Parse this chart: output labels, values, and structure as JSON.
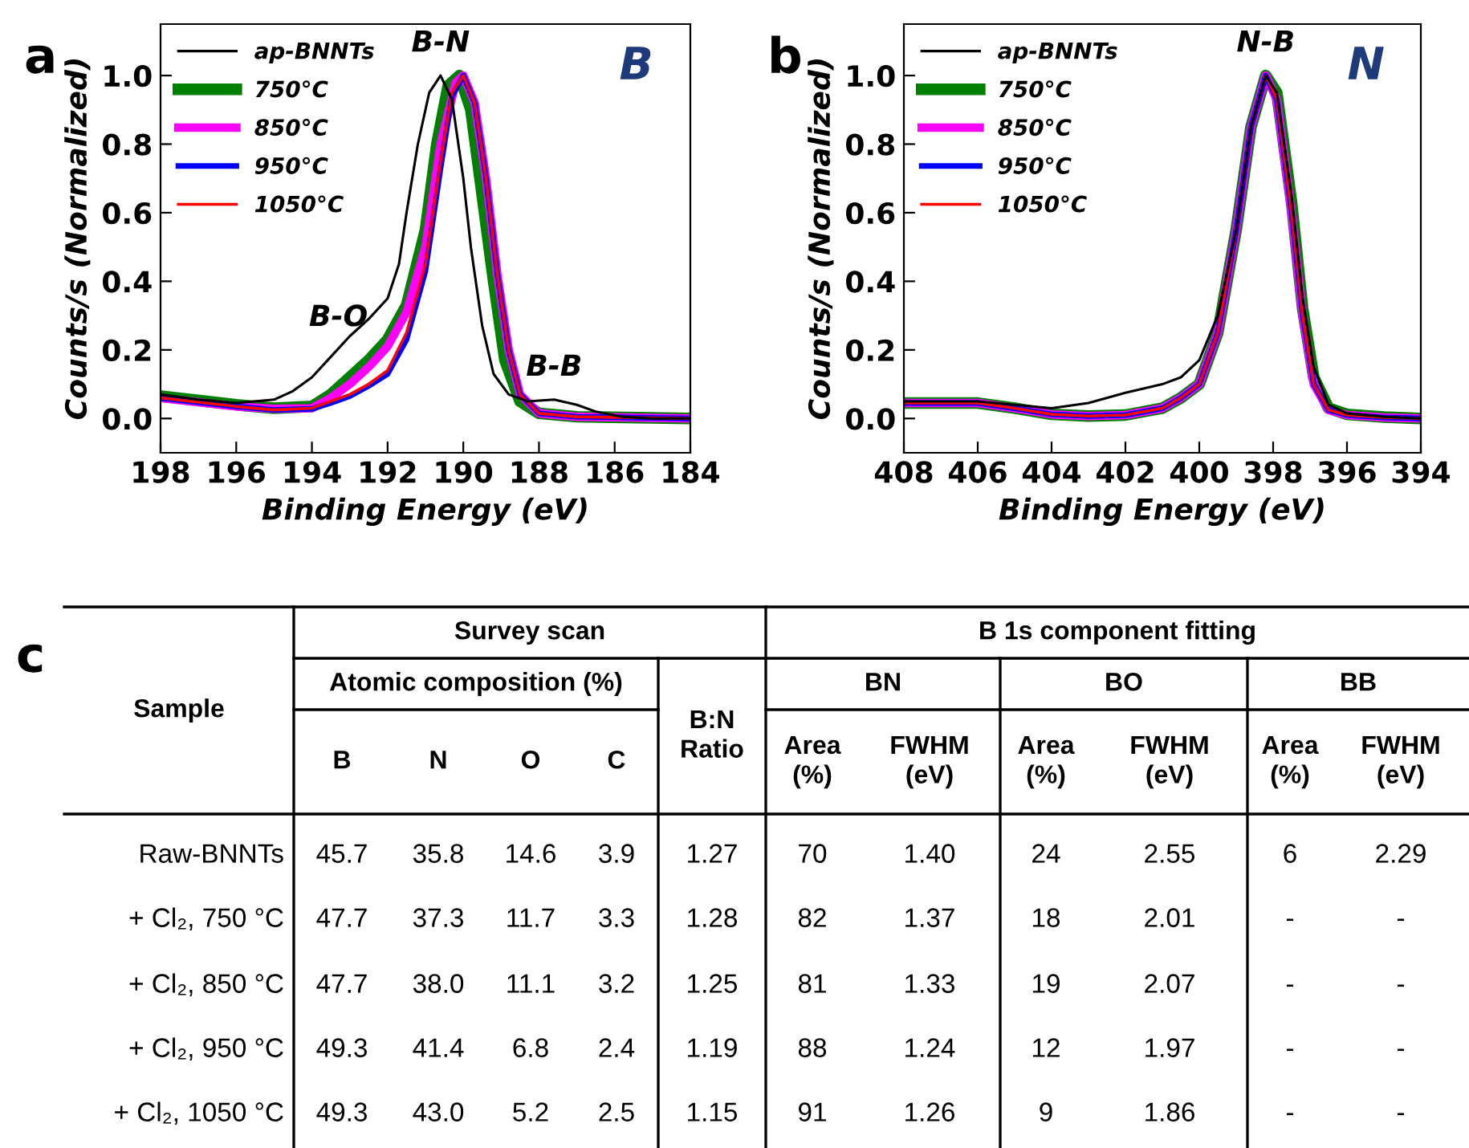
{
  "chart_data": [
    {
      "type": "line",
      "title": "a",
      "xlabel": "Binding Energy (eV)",
      "ylabel": "Counts/s (Normalized)",
      "xlim": [
        198,
        184
      ],
      "xticks": [
        198,
        196,
        194,
        192,
        190,
        188,
        186,
        184
      ],
      "ylim": [
        -0.1,
        1.15
      ],
      "yticks": [
        {
          "value": 0,
          "label": "0.0"
        },
        {
          "value": 0.2,
          "label": "0.2"
        },
        {
          "value": 0.4,
          "label": "0.4"
        },
        {
          "value": 0.6,
          "label": "0.6"
        },
        {
          "value": 0.8,
          "label": "0.8"
        },
        {
          "value": 1,
          "label": "1.0"
        }
      ],
      "legend": "top left",
      "grid": false,
      "annotations": [
        "B",
        {
          "text": "B-N",
          "x": 190.6,
          "y": 1.0
        },
        {
          "text": "B-O",
          "x": 193.3,
          "y": 0.2
        },
        {
          "text": "B-B",
          "x": 187.6,
          "y": 0.055
        }
      ],
      "series": [
        {
          "name": "ap-BNNTs",
          "color": "#000000",
          "x": [
            198,
            197,
            196,
            195,
            194.5,
            194,
            193.5,
            193,
            192.5,
            192,
            191.7,
            191.5,
            191.2,
            190.9,
            190.6,
            190.3,
            190,
            189.8,
            189.5,
            189.2,
            188.8,
            188.3,
            187.6,
            187,
            186.5,
            185.8,
            185,
            184
          ],
          "values": [
            0.07,
            0.055,
            0.045,
            0.055,
            0.08,
            0.12,
            0.18,
            0.24,
            0.29,
            0.35,
            0.45,
            0.6,
            0.8,
            0.95,
            1.0,
            0.93,
            0.7,
            0.5,
            0.27,
            0.13,
            0.07,
            0.05,
            0.055,
            0.04,
            0.02,
            0.005,
            0.0,
            0.0
          ]
        },
        {
          "name": "750°C",
          "color": "#008000",
          "x": [
            198,
            196,
            195,
            194,
            193.5,
            193,
            192.5,
            192,
            191.5,
            191,
            190.7,
            190.4,
            190.1,
            189.8,
            189.5,
            189.2,
            188.9,
            188.5,
            188,
            187,
            184
          ],
          "values": [
            0.065,
            0.04,
            0.03,
            0.035,
            0.07,
            0.12,
            0.17,
            0.23,
            0.33,
            0.55,
            0.8,
            0.97,
            1.0,
            0.9,
            0.65,
            0.4,
            0.17,
            0.05,
            0.015,
            0.005,
            0.0
          ]
        },
        {
          "name": "850°C",
          "color": "#ff00ff",
          "x": [
            198,
            196,
            195,
            194,
            193.5,
            193,
            192.5,
            192,
            191.5,
            191,
            190.6,
            190.2,
            190,
            189.7,
            189.4,
            189.1,
            188.8,
            188.5,
            188,
            187,
            184
          ],
          "values": [
            0.06,
            0.035,
            0.028,
            0.03,
            0.06,
            0.1,
            0.15,
            0.21,
            0.31,
            0.5,
            0.8,
            0.98,
            1.0,
            0.92,
            0.7,
            0.42,
            0.2,
            0.07,
            0.015,
            0.005,
            0.0
          ]
        },
        {
          "name": "950°C",
          "color": "#0000ff",
          "x": [
            198,
            196,
            195,
            194,
            193.5,
            193,
            192.5,
            192,
            191.5,
            191,
            190.6,
            190.3,
            190,
            189.7,
            189.4,
            189.1,
            188.8,
            188.5,
            188,
            187,
            184
          ],
          "values": [
            0.06,
            0.035,
            0.025,
            0.028,
            0.045,
            0.065,
            0.095,
            0.13,
            0.23,
            0.43,
            0.73,
            0.94,
            1.0,
            0.92,
            0.7,
            0.42,
            0.2,
            0.07,
            0.015,
            0.005,
            0.0
          ]
        },
        {
          "name": "1050°C",
          "color": "#ff0000",
          "x": [
            198,
            196,
            195,
            194,
            193.5,
            193,
            192.5,
            192,
            191.5,
            191,
            190.6,
            190.3,
            190,
            189.7,
            189.4,
            189.1,
            188.8,
            188.5,
            188,
            187,
            184
          ],
          "values": [
            0.06,
            0.035,
            0.025,
            0.03,
            0.05,
            0.07,
            0.1,
            0.14,
            0.25,
            0.45,
            0.75,
            0.95,
            1.0,
            0.92,
            0.7,
            0.42,
            0.2,
            0.07,
            0.015,
            0.005,
            0.0
          ]
        }
      ]
    },
    {
      "type": "line",
      "title": "b",
      "xlabel": "Binding Energy (eV)",
      "ylabel": "Counts/s (Normalized)",
      "xlim": [
        408,
        394
      ],
      "xticks": [
        408,
        406,
        404,
        402,
        400,
        398,
        396,
        394
      ],
      "ylim": [
        -0.1,
        1.15
      ],
      "yticks": [
        {
          "value": 0,
          "label": "0.0"
        },
        {
          "value": 0.2,
          "label": "0.2"
        },
        {
          "value": 0.4,
          "label": "0.4"
        },
        {
          "value": 0.6,
          "label": "0.6"
        },
        {
          "value": 0.8,
          "label": "0.8"
        },
        {
          "value": 1,
          "label": "1.0"
        }
      ],
      "legend": "top left",
      "grid": false,
      "annotations": [
        "N",
        {
          "text": "N-B",
          "x": 398.2,
          "y": 1.0
        }
      ],
      "series": [
        {
          "name": "ap-BNNTs",
          "color": "#000000",
          "x": [
            408,
            406,
            405,
            404,
            403,
            402,
            401,
            400.5,
            400,
            399.5,
            399,
            398.6,
            398.2,
            397.9,
            397.5,
            397.2,
            396.9,
            396.5,
            396,
            395,
            394
          ],
          "values": [
            0.05,
            0.05,
            0.04,
            0.03,
            0.045,
            0.075,
            0.1,
            0.12,
            0.17,
            0.3,
            0.55,
            0.85,
            1.0,
            0.95,
            0.65,
            0.35,
            0.15,
            0.04,
            0.015,
            0.005,
            0.0
          ]
        },
        {
          "name": "750°C",
          "color": "#008000",
          "x": [
            408,
            406,
            405,
            404,
            403,
            402,
            401,
            400.5,
            400,
            399.5,
            399,
            398.6,
            398.2,
            397.9,
            397.5,
            397.2,
            396.9,
            396.5,
            396,
            395,
            394
          ],
          "values": [
            0.045,
            0.045,
            0.03,
            0.012,
            0.007,
            0.01,
            0.03,
            0.06,
            0.1,
            0.25,
            0.55,
            0.85,
            1.0,
            0.95,
            0.63,
            0.32,
            0.12,
            0.03,
            0.012,
            0.004,
            0.0
          ]
        },
        {
          "name": "850°C",
          "color": "#ff00ff",
          "x": [
            408,
            406,
            405,
            404,
            403,
            402,
            401,
            400.5,
            400,
            399.5,
            399,
            398.6,
            398.2,
            397.9,
            397.5,
            397.2,
            396.9,
            396.5,
            396,
            395,
            394
          ],
          "values": [
            0.045,
            0.045,
            0.03,
            0.012,
            0.007,
            0.01,
            0.03,
            0.06,
            0.1,
            0.25,
            0.55,
            0.85,
            1.0,
            0.93,
            0.6,
            0.3,
            0.1,
            0.025,
            0.01,
            0.003,
            0.0
          ]
        },
        {
          "name": "950°C",
          "color": "#0000ff",
          "x": [
            408,
            406,
            405,
            404,
            403,
            402,
            401,
            400.5,
            400,
            399.5,
            399,
            398.6,
            398.2,
            397.9,
            397.5,
            397.2,
            396.9,
            396.5,
            396,
            395,
            394
          ],
          "values": [
            0.045,
            0.045,
            0.03,
            0.012,
            0.007,
            0.01,
            0.03,
            0.06,
            0.1,
            0.25,
            0.55,
            0.85,
            1.0,
            0.93,
            0.6,
            0.3,
            0.1,
            0.025,
            0.01,
            0.003,
            0.0
          ]
        },
        {
          "name": "1050°C",
          "color": "#ff0000",
          "x": [
            408,
            406,
            405,
            404,
            403,
            402,
            401,
            400.5,
            400,
            399.5,
            399,
            398.6,
            398.2,
            397.9,
            397.5,
            397.2,
            396.9,
            396.5,
            396,
            395,
            394
          ],
          "values": [
            0.045,
            0.045,
            0.03,
            0.012,
            0.007,
            0.01,
            0.03,
            0.06,
            0.1,
            0.25,
            0.55,
            0.85,
            1.0,
            0.93,
            0.6,
            0.3,
            0.1,
            0.025,
            0.01,
            0.003,
            0.0
          ]
        }
      ]
    },
    {
      "type": "other",
      "title": "c",
      "annotations": [
        "Sample",
        "Survey scan",
        "B 1s component fitting",
        "Atomic composition (%)",
        "B:N\nRatio",
        "BN",
        "BO",
        "BB",
        "B",
        "N",
        "O",
        "C",
        "Area\n(%)",
        "FWHM\n(eV)",
        "Area\n(%)",
        "FWHM\n(eV)",
        "Area\n(%)",
        "FWHM\n(eV)",
        "Raw-BNNTs",
        "45.7",
        "35.8",
        "14.6",
        "3.9",
        "1.27",
        "70",
        "1.40",
        "24",
        "2.55",
        "6",
        "2.29",
        "+ Cl₂, 750 °C",
        "47.7",
        "37.3",
        "11.7",
        "3.3",
        "1.28",
        "82",
        "1.37",
        "18",
        "2.01",
        "-",
        "-",
        "+ Cl₂, 850 °C",
        "47.7",
        "38.0",
        "11.1",
        "3.2",
        "1.25",
        "81",
        "1.33",
        "19",
        "2.07",
        "-",
        "-",
        "+ Cl₂, 950 °C",
        "49.3",
        "41.4",
        "6.8",
        "2.4",
        "1.19",
        "88",
        "1.24",
        "12",
        "1.97",
        "-",
        "-",
        "+ Cl₂, 1050 °C",
        "49.3",
        "43.0",
        "5.2",
        "2.5",
        "1.15",
        "91",
        "1.26",
        "9",
        "1.86",
        "-",
        "-"
      ]
    }
  ]
}
